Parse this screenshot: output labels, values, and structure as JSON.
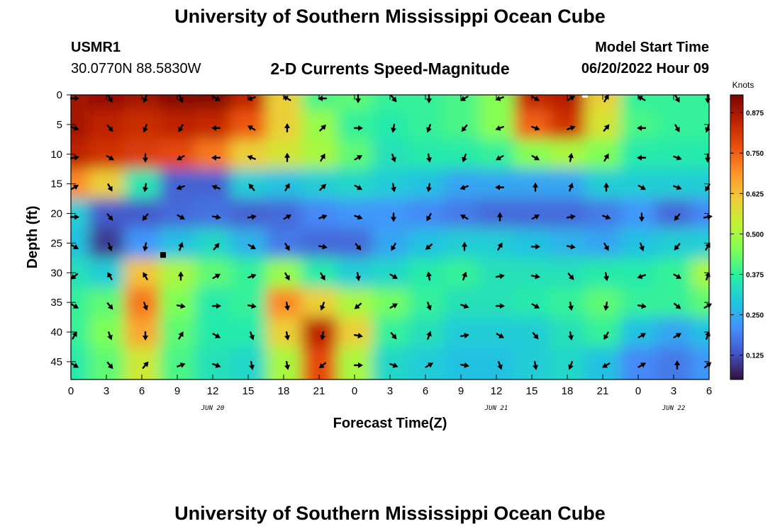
{
  "header": {
    "title": "University of Southern Mississippi Ocean Cube",
    "station": "USMR1",
    "coordinates": "30.0770N  88.5830W",
    "subtitle": "2-D Currents Speed-Magnitude",
    "model_start_label": "Model Start Time",
    "model_start_value": "06/20/2022 Hour 09"
  },
  "footer": {
    "title": "University of Southern Mississippi Ocean Cube"
  },
  "colors": {
    "scale": [
      "#30123b",
      "#4454c4",
      "#4490fe",
      "#1fc8de",
      "#29efa2",
      "#7dff56",
      "#c1f334",
      "#f1ca3a",
      "#fe922a",
      "#ea4f0d",
      "#be2102",
      "#7a0403"
    ]
  },
  "chart_data": {
    "type": "heatmap",
    "xlabel": "Forecast Time(Z)",
    "ylabel": "Depth (ft)",
    "x_ticks": [
      "0",
      "3",
      "6",
      "9",
      "12",
      "15",
      "18",
      "21",
      "0",
      "3",
      "6",
      "9",
      "12",
      "15",
      "18",
      "21",
      "0",
      "3",
      "6"
    ],
    "date_labels": [
      "JUN 20",
      "JUN 21",
      "JUN 22"
    ],
    "y_ticks": [
      "0",
      "5",
      "10",
      "15",
      "20",
      "25",
      "30",
      "35",
      "40",
      "45"
    ],
    "ylim": [
      0,
      48
    ],
    "y_inverted": true,
    "colorbar": {
      "title": "Knots",
      "ticks": [
        "0.875",
        "0.750",
        "0.625",
        "0.500",
        "0.375",
        "0.250",
        "0.125"
      ],
      "range": [
        0.05,
        0.93
      ]
    },
    "depths": [
      0,
      5,
      10,
      15,
      20,
      25,
      30,
      35,
      40,
      45
    ],
    "speed": [
      [
        0.88,
        0.9,
        0.88,
        0.92,
        0.92,
        0.85,
        0.6,
        0.4,
        0.42,
        0.38,
        0.38,
        0.4,
        0.46,
        0.84,
        0.86,
        0.6,
        0.38,
        0.38,
        0.38
      ],
      [
        0.88,
        0.85,
        0.83,
        0.85,
        0.84,
        0.76,
        0.6,
        0.48,
        0.38,
        0.36,
        0.38,
        0.4,
        0.46,
        0.75,
        0.82,
        0.56,
        0.4,
        0.38,
        0.38
      ],
      [
        0.85,
        0.82,
        0.8,
        0.78,
        0.72,
        0.6,
        0.56,
        0.5,
        0.42,
        0.34,
        0.36,
        0.36,
        0.38,
        0.46,
        0.5,
        0.45,
        0.36,
        0.36,
        0.36
      ],
      [
        0.7,
        0.6,
        0.35,
        0.15,
        0.15,
        0.3,
        0.28,
        0.3,
        0.32,
        0.3,
        0.28,
        0.24,
        0.24,
        0.24,
        0.24,
        0.3,
        0.3,
        0.3,
        0.3
      ],
      [
        0.3,
        0.14,
        0.14,
        0.16,
        0.17,
        0.15,
        0.16,
        0.2,
        0.22,
        0.22,
        0.2,
        0.18,
        0.16,
        0.16,
        0.16,
        0.18,
        0.22,
        0.16,
        0.2
      ],
      [
        0.28,
        0.1,
        0.22,
        0.28,
        0.32,
        0.26,
        0.18,
        0.16,
        0.16,
        0.24,
        0.28,
        0.3,
        0.3,
        0.28,
        0.26,
        0.24,
        0.28,
        0.3,
        0.3
      ],
      [
        0.34,
        0.3,
        0.62,
        0.5,
        0.42,
        0.38,
        0.48,
        0.36,
        0.3,
        0.32,
        0.36,
        0.38,
        0.34,
        0.34,
        0.34,
        0.36,
        0.36,
        0.38,
        0.5
      ],
      [
        0.38,
        0.42,
        0.72,
        0.45,
        0.36,
        0.38,
        0.7,
        0.6,
        0.5,
        0.44,
        0.38,
        0.34,
        0.34,
        0.36,
        0.38,
        0.42,
        0.38,
        0.38,
        0.42
      ],
      [
        0.38,
        0.45,
        0.66,
        0.42,
        0.36,
        0.36,
        0.6,
        0.85,
        0.6,
        0.38,
        0.34,
        0.3,
        0.3,
        0.3,
        0.34,
        0.38,
        0.28,
        0.24,
        0.28
      ],
      [
        0.36,
        0.42,
        0.55,
        0.4,
        0.34,
        0.32,
        0.5,
        0.78,
        0.5,
        0.32,
        0.3,
        0.28,
        0.28,
        0.3,
        0.32,
        0.28,
        0.2,
        0.18,
        0.22
      ]
    ],
    "direction_deg": [
      [
        90,
        150,
        200,
        160,
        120,
        250,
        300,
        270,
        180,
        140,
        180,
        240,
        250,
        120,
        60,
        30,
        300,
        150,
        180
      ],
      [
        110,
        140,
        200,
        210,
        270,
        300,
        0,
        45,
        90,
        190,
        200,
        220,
        250,
        110,
        70,
        40,
        270,
        150,
        200
      ],
      [
        80,
        120,
        180,
        240,
        270,
        290,
        0,
        30,
        60,
        160,
        170,
        200,
        240,
        120,
        10,
        30,
        270,
        110,
        180
      ],
      [
        60,
        150,
        190,
        250,
        290,
        320,
        30,
        45,
        120,
        170,
        190,
        250,
        270,
        0,
        20,
        0,
        120,
        110,
        210
      ],
      [
        90,
        140,
        220,
        120,
        100,
        80,
        60,
        70,
        110,
        180,
        210,
        300,
        0,
        60,
        80,
        110,
        180,
        220,
        80
      ],
      [
        120,
        160,
        190,
        20,
        40,
        120,
        150,
        100,
        140,
        210,
        230,
        0,
        30,
        90,
        100,
        150,
        160,
        220,
        30
      ],
      [
        230,
        330,
        330,
        0,
        60,
        70,
        150,
        150,
        170,
        120,
        350,
        20,
        80,
        100,
        140,
        170,
        250,
        120,
        20
      ],
      [
        120,
        140,
        160,
        100,
        90,
        100,
        170,
        200,
        230,
        60,
        160,
        110,
        90,
        120,
        170,
        190,
        100,
        130,
        60
      ],
      [
        30,
        160,
        180,
        30,
        120,
        160,
        170,
        190,
        100,
        140,
        20,
        80,
        120,
        140,
        170,
        210,
        60,
        60,
        20
      ],
      [
        120,
        140,
        40,
        70,
        110,
        170,
        170,
        230,
        90,
        110,
        60,
        100,
        160,
        170,
        200,
        240,
        60,
        0,
        50
      ]
    ],
    "markers": [
      {
        "depth": 27,
        "x_index": 2.6,
        "color": "#000000"
      },
      {
        "depth": 0,
        "x_index": 14.5,
        "color": "#ffffff"
      }
    ]
  }
}
